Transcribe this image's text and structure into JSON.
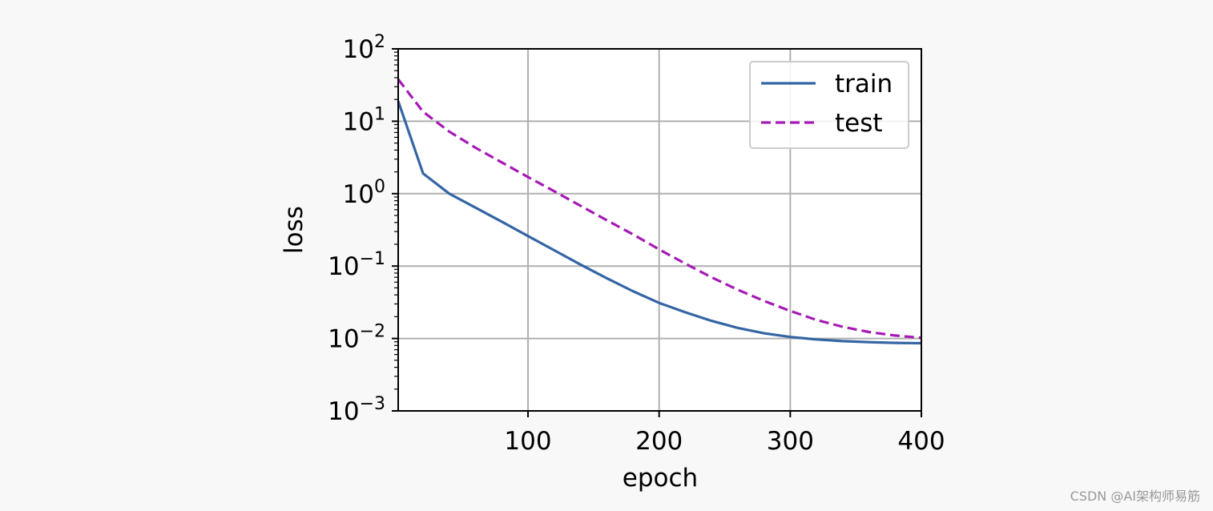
{
  "chart_data": {
    "type": "line",
    "xlabel": "epoch",
    "ylabel": "loss",
    "yscale": "log",
    "xlim": [
      1,
      400
    ],
    "ylim": [
      0.001,
      100
    ],
    "grid": true,
    "legend_position": "upper-right",
    "x_ticks": [
      100,
      200,
      300,
      400
    ],
    "y_ticks": [
      {
        "value": 0.001,
        "base": "10",
        "exp": "−3"
      },
      {
        "value": 0.01,
        "base": "10",
        "exp": "−2"
      },
      {
        "value": 0.1,
        "base": "10",
        "exp": "−1"
      },
      {
        "value": 1,
        "base": "10",
        "exp": "0"
      },
      {
        "value": 10,
        "base": "10",
        "exp": "1"
      },
      {
        "value": 100,
        "base": "10",
        "exp": "2"
      }
    ],
    "x": [
      1,
      20,
      40,
      60,
      80,
      100,
      120,
      140,
      160,
      180,
      200,
      220,
      240,
      260,
      280,
      300,
      320,
      340,
      360,
      380,
      400
    ],
    "series": [
      {
        "name": "train",
        "color": "#3465a4",
        "style": "solid",
        "values": [
          19,
          1.9,
          1.0,
          0.64,
          0.41,
          0.26,
          0.165,
          0.105,
          0.068,
          0.045,
          0.031,
          0.023,
          0.0175,
          0.014,
          0.0118,
          0.0105,
          0.0097,
          0.0092,
          0.0089,
          0.0087,
          0.0086
        ]
      },
      {
        "name": "test",
        "color": "#a51bb5",
        "style": "dashed",
        "values": [
          38,
          13.5,
          7.2,
          4.3,
          2.7,
          1.7,
          1.08,
          0.68,
          0.43,
          0.275,
          0.17,
          0.108,
          0.07,
          0.047,
          0.033,
          0.024,
          0.018,
          0.0145,
          0.0123,
          0.011,
          0.0102
        ]
      }
    ]
  },
  "watermark": "CSDN @AI架构师易筋"
}
